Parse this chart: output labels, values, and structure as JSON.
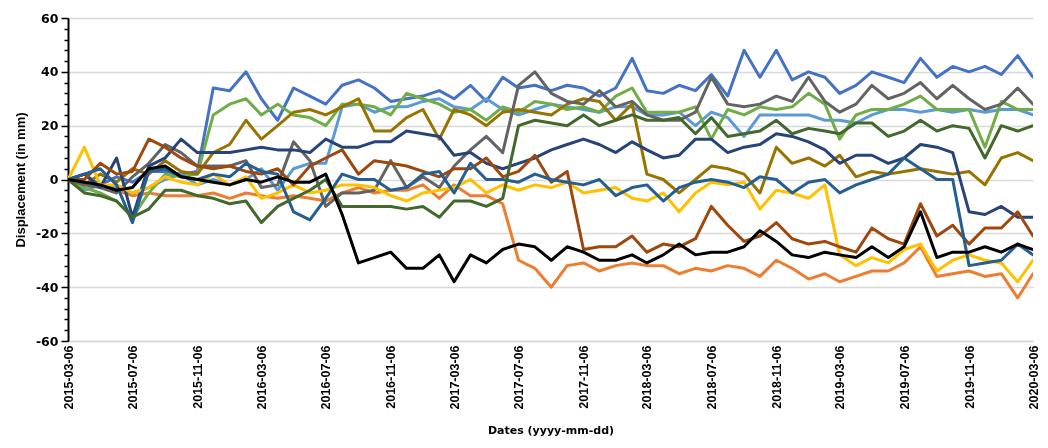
{
  "chart_data": {
    "type": "line",
    "xlabel": "Dates (yyyy-mm-dd)",
    "ylabel": "Displacement (in mm)",
    "x": [
      "2015-03-06",
      "2015-04-06",
      "2015-05-06",
      "2015-06-06",
      "2015-07-06",
      "2015-08-06",
      "2015-09-06",
      "2015-10-06",
      "2015-11-06",
      "2015-12-06",
      "2016-01-06",
      "2016-02-06",
      "2016-03-06",
      "2016-04-06",
      "2016-05-06",
      "2016-06-06",
      "2016-07-06",
      "2016-08-06",
      "2016-09-06",
      "2016-10-06",
      "2016-11-06",
      "2016-12-06",
      "2017-01-06",
      "2017-02-06",
      "2017-03-06",
      "2017-04-06",
      "2017-05-06",
      "2017-06-06",
      "2017-07-06",
      "2017-08-06",
      "2017-09-06",
      "2017-10-06",
      "2017-11-06",
      "2017-12-06",
      "2018-01-06",
      "2018-02-06",
      "2018-03-06",
      "2018-04-06",
      "2018-05-06",
      "2018-06-06",
      "2018-07-06",
      "2018-08-06",
      "2018-09-06",
      "2018-10-06",
      "2018-11-06",
      "2018-12-06",
      "2019-01-06",
      "2019-02-06",
      "2019-03-06",
      "2019-04-06",
      "2019-05-06",
      "2019-06-06",
      "2019-07-06",
      "2019-08-06",
      "2019-09-06",
      "2019-10-06",
      "2019-11-06",
      "2019-12-06",
      "2020-01-06",
      "2020-02-06",
      "2020-03-06"
    ],
    "xlim": [
      "2015-03-06",
      "2020-03-06"
    ],
    "xticks": [
      "2015-03-06",
      "2015-07-06",
      "2015-11-06",
      "2016-03-06",
      "2016-07-06",
      "2016-11-06",
      "2017-03-06",
      "2017-07-06",
      "2017-11-06",
      "2018-03-06",
      "2018-07-06",
      "2018-11-06",
      "2019-03-06",
      "2019-07-06",
      "2019-11-06",
      "2020-03-06"
    ],
    "ylim": [
      -60,
      60
    ],
    "yticks": [
      -60,
      {
        "value": -56,
        "label": null
      },
      {
        "value": -52,
        "label": null
      },
      {
        "value": -48,
        "label": null
      },
      {
        "value": -44,
        "label": null
      },
      -40,
      {
        "value": -36,
        "label": null
      },
      {
        "value": -32,
        "label": null
      },
      {
        "value": -28,
        "label": null
      },
      {
        "value": -24,
        "label": null
      },
      -20,
      {
        "value": -16,
        "label": null
      },
      {
        "value": -12,
        "label": null
      },
      {
        "value": -8,
        "label": null
      },
      {
        "value": -4,
        "label": null
      },
      0,
      {
        "value": 4,
        "label": null
      },
      {
        "value": 8,
        "label": null
      },
      {
        "value": 12,
        "label": null
      },
      {
        "value": 16,
        "label": null
      },
      20,
      {
        "value": 24,
        "label": null
      },
      {
        "value": 28,
        "label": null
      },
      {
        "value": 32,
        "label": null
      },
      {
        "value": 36,
        "label": null
      },
      40,
      {
        "value": 44,
        "label": null
      },
      {
        "value": 48,
        "label": null
      },
      {
        "value": 52,
        "label": null
      },
      {
        "value": 56,
        "label": null
      },
      60
    ],
    "grid": "y",
    "legend": false,
    "line_style": "solid",
    "series": [
      {
        "color": "#4472c4",
        "values": [
          0,
          2,
          -2,
          1,
          -1,
          3,
          3,
          2,
          3,
          34,
          33,
          40,
          30,
          22,
          34,
          31,
          28,
          35,
          37,
          34,
          29,
          30,
          31,
          33,
          30,
          35,
          29,
          38,
          34,
          35,
          33,
          35,
          34,
          31,
          34,
          45,
          33,
          32,
          35,
          33,
          39,
          31,
          48,
          38,
          48,
          37,
          40,
          38,
          32,
          35,
          40,
          38,
          36,
          45,
          38,
          42,
          40,
          42,
          39,
          46,
          38
        ]
      },
      {
        "color": "#ed7d31",
        "values": [
          null,
          null,
          null,
          -4,
          -6,
          -5,
          -6,
          -6,
          -6,
          -5,
          -7,
          -5,
          -6,
          -7,
          -6,
          -7,
          -8,
          -5,
          -3,
          -5,
          -4,
          -4,
          -2,
          -7,
          -2,
          -6,
          -6,
          -9,
          -30,
          -33,
          -40,
          -32,
          -31,
          -34,
          -32,
          -31,
          -32,
          -32,
          -35,
          -33,
          -34,
          -32,
          -33,
          -36,
          -30,
          -33,
          -37,
          -35,
          -38,
          -36,
          -34,
          -34,
          -31,
          -25,
          -36,
          -35,
          -34,
          -36,
          -35,
          -44,
          -35
        ]
      },
      {
        "color": "#5b9bd5",
        "values": [
          0,
          -4,
          -2,
          -3,
          -5,
          -3,
          0,
          2,
          -2,
          0,
          -2,
          0,
          4,
          -4,
          4,
          6,
          6,
          27,
          28,
          25,
          27,
          27,
          29,
          30,
          27,
          26,
          30,
          26,
          24,
          26,
          28,
          27,
          26,
          25,
          27,
          27,
          24,
          24,
          25,
          20,
          25,
          23,
          16,
          24,
          24,
          24,
          24,
          22,
          22,
          21,
          24,
          26,
          26,
          25,
          26,
          25,
          26,
          25,
          26,
          26,
          24
        ]
      },
      {
        "color": "#70ad47",
        "values": [
          0,
          -3,
          -5,
          -8,
          -14,
          -5,
          2,
          1,
          2,
          24,
          28,
          30,
          24,
          28,
          24,
          23,
          20,
          28,
          28,
          27,
          24,
          32,
          30,
          28,
          25,
          26,
          22,
          27,
          25,
          29,
          28,
          26,
          27,
          25,
          31,
          34,
          25,
          25,
          25,
          27,
          15,
          26,
          24,
          27,
          26,
          27,
          32,
          28,
          15,
          24,
          26,
          26,
          28,
          31,
          26,
          26,
          26,
          12,
          29,
          26,
          26
        ]
      },
      {
        "color": "#997300",
        "values": [
          0,
          -2,
          2,
          -1,
          4,
          2,
          7,
          3,
          2,
          10,
          13,
          22,
          15,
          20,
          25,
          26,
          24,
          27,
          30,
          18,
          18,
          23,
          26,
          15,
          26,
          24,
          20,
          25,
          26,
          25,
          24,
          28,
          30,
          29,
          22,
          28,
          2,
          0,
          -5,
          0,
          5,
          4,
          2,
          -5,
          12,
          6,
          8,
          5,
          9,
          1,
          3,
          2,
          3,
          4,
          3,
          2,
          3,
          -2,
          8,
          10,
          7
        ]
      },
      {
        "color": "#636363",
        "values": [
          0,
          -2,
          -3,
          -5,
          1,
          6,
          13,
          10,
          5,
          5,
          5,
          7,
          -3,
          -2,
          14,
          7,
          -10,
          -5,
          -5,
          -4,
          7,
          -3,
          1,
          -3,
          5,
          11,
          16,
          10,
          35,
          40,
          32,
          29,
          28,
          33,
          27,
          29,
          24,
          22,
          22,
          25,
          38,
          28,
          27,
          28,
          31,
          29,
          38,
          29,
          25,
          28,
          35,
          30,
          32,
          36,
          30,
          35,
          30,
          26,
          28,
          34,
          28
        ]
      },
      {
        "color": "#264478",
        "values": [
          0,
          2,
          -3,
          8,
          -14,
          5,
          8,
          15,
          10,
          10,
          10,
          11,
          12,
          11,
          11,
          10,
          15,
          12,
          12,
          14,
          14,
          18,
          17,
          16,
          9,
          10,
          6,
          4,
          6,
          8,
          11,
          13,
          15,
          13,
          10,
          14,
          11,
          8,
          9,
          15,
          15,
          10,
          12,
          13,
          17,
          16,
          14,
          11,
          6,
          9,
          9,
          6,
          8,
          13,
          12,
          10,
          -12,
          -13,
          -10,
          -14,
          -14
        ]
      },
      {
        "color": "#ffc000",
        "values": [
          0,
          12,
          -2,
          -2,
          -5,
          -3,
          1,
          -1,
          -2,
          2,
          -2,
          1,
          -7,
          -5,
          -2,
          -5,
          -4,
          -2,
          -2,
          -3,
          -6,
          -8,
          -5,
          -4,
          -3,
          0,
          -5,
          -2,
          -4,
          -2,
          -3,
          -1,
          -5,
          -4,
          -3,
          -7,
          -8,
          -5,
          -12,
          -5,
          -1,
          -2,
          -1,
          -11,
          -4,
          -5,
          -7,
          -2,
          -28,
          -32,
          -29,
          -31,
          -26,
          -24,
          -34,
          -30,
          -28,
          -30,
          -31,
          -38,
          -30
        ]
      },
      {
        "color": "#9e480e",
        "values": [
          0,
          0,
          6,
          2,
          3,
          15,
          12,
          8,
          5,
          4,
          5,
          3,
          2,
          4,
          -2,
          5,
          8,
          11,
          2,
          7,
          6,
          5,
          3,
          1,
          4,
          4,
          8,
          1,
          3,
          9,
          -1,
          3,
          -26,
          -25,
          -25,
          -21,
          -27,
          -24,
          -25,
          -22,
          -10,
          -17,
          -23,
          -21,
          -16,
          -22,
          -24,
          -23,
          -25,
          -27,
          -18,
          -22,
          -24,
          -9,
          -21,
          -17,
          -24,
          -18,
          -18,
          -12,
          -21
        ]
      },
      {
        "color": "#255e91",
        "values": [
          0,
          2,
          4,
          -2,
          -16,
          3,
          4,
          1,
          0,
          2,
          1,
          6,
          3,
          2,
          -12,
          -15,
          -7,
          2,
          0,
          0,
          -4,
          -3,
          2,
          3,
          -5,
          6,
          0,
          0,
          -1,
          2,
          0,
          -1,
          -2,
          0,
          -6,
          -3,
          -2,
          -8,
          -3,
          -1,
          0,
          -1,
          -3,
          1,
          0,
          -5,
          -1,
          0,
          -5,
          -2,
          0,
          2,
          8,
          4,
          0,
          0,
          -32,
          -31,
          -30,
          -24,
          -28
        ]
      },
      {
        "color": "#43682b",
        "values": [
          0,
          -5,
          -6,
          -8,
          -14,
          -11,
          -4,
          -4,
          -6,
          -7,
          -9,
          -8,
          -16,
          -10,
          -7,
          -4,
          0,
          -10,
          -10,
          -10,
          -10,
          -11,
          -10,
          -14,
          -8,
          -8,
          -10,
          -7,
          20,
          22,
          21,
          20,
          24,
          20,
          22,
          24,
          22,
          22,
          23,
          17,
          23,
          16,
          17,
          18,
          22,
          17,
          19,
          18,
          17,
          21,
          21,
          16,
          18,
          22,
          18,
          20,
          19,
          8,
          20,
          18,
          20
        ]
      },
      {
        "color": "#000000",
        "values": [
          0,
          -1,
          -2,
          -4,
          -3,
          4,
          5,
          1,
          0,
          -1,
          -2,
          0,
          -1,
          1,
          -1,
          -1,
          2,
          -13,
          -31,
          -29,
          -27,
          -33,
          -33,
          -28,
          -38,
          -28,
          -31,
          -26,
          -24,
          -25,
          -30,
          -25,
          -27,
          -30,
          -30,
          -28,
          -31,
          -28,
          -24,
          -28,
          -27,
          -27,
          -25,
          -19,
          -23,
          -28,
          -29,
          -27,
          -28,
          -29,
          -25,
          -29,
          -25,
          -12,
          -29,
          -27,
          -27,
          -25,
          -27,
          -24,
          -26
        ]
      }
    ]
  }
}
